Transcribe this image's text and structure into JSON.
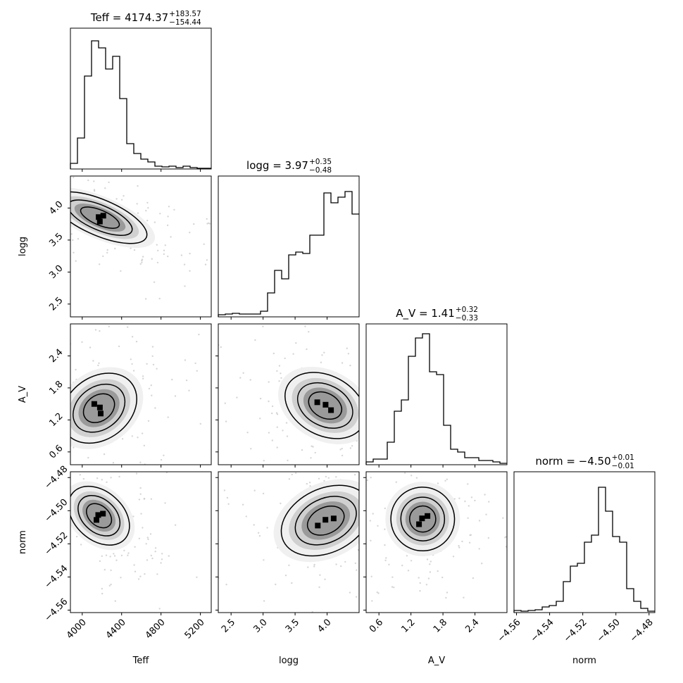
{
  "chart_data": {
    "type": "corner",
    "parameters": [
      "Teff",
      "logg",
      "A_V",
      "norm"
    ],
    "titles": [
      {
        "param": "Teff",
        "label": "Teff = 4174.37",
        "plus": "+183.57",
        "minus": "−154.44"
      },
      {
        "param": "logg",
        "label": "logg = 3.97",
        "plus": "+0.35",
        "minus": "−0.48"
      },
      {
        "param": "A_V",
        "label": "A_V = 1.41",
        "plus": "+0.32",
        "minus": "−0.33"
      },
      {
        "param": "norm",
        "label": "norm = −4.50",
        "plus": "+0.01",
        "minus": "−0.01"
      }
    ],
    "ranges": {
      "Teff": [
        3880,
        5310
      ],
      "logg": [
        2.3,
        4.5
      ],
      "A_V": [
        0.36,
        3.0
      ],
      "norm": [
        -4.5615,
        -4.4765
      ]
    },
    "ticks": {
      "Teff": [
        {
          "v": 4000,
          "t": "4000"
        },
        {
          "v": 4400,
          "t": "4400"
        },
        {
          "v": 4800,
          "t": "4800"
        },
        {
          "v": 5200,
          "t": "5200"
        }
      ],
      "logg": [
        {
          "v": 2.5,
          "t": "2.5"
        },
        {
          "v": 3.0,
          "t": "3.0"
        },
        {
          "v": 3.5,
          "t": "3.5"
        },
        {
          "v": 4.0,
          "t": "4.0"
        }
      ],
      "A_V": [
        {
          "v": 0.6,
          "t": "0.6"
        },
        {
          "v": 1.2,
          "t": "1.2"
        },
        {
          "v": 1.8,
          "t": "1.8"
        },
        {
          "v": 2.4,
          "t": "2.4"
        }
      ],
      "norm": [
        {
          "v": -4.56,
          "t": "−4.56"
        },
        {
          "v": -4.54,
          "t": "−4.54"
        },
        {
          "v": -4.52,
          "t": "−4.52"
        },
        {
          "v": -4.5,
          "t": "−4.50"
        },
        {
          "v": -4.48,
          "t": "−4.48"
        }
      ]
    },
    "histograms": {
      "Teff": [
        0.04,
        0.22,
        0.66,
        0.91,
        0.86,
        0.71,
        0.8,
        0.5,
        0.18,
        0.11,
        0.07,
        0.05,
        0.02,
        0.015,
        0.02,
        0.01,
        0.02,
        0.01,
        0.005,
        0.005
      ],
      "logg": [
        0.015,
        0.02,
        0.025,
        0.02,
        0.02,
        0.02,
        0.04,
        0.17,
        0.33,
        0.27,
        0.44,
        0.46,
        0.45,
        0.58,
        0.58,
        0.88,
        0.81,
        0.85,
        0.89,
        0.73
      ],
      "A_V": [
        0.02,
        0.04,
        0.04,
        0.16,
        0.38,
        0.46,
        0.77,
        0.9,
        0.93,
        0.66,
        0.64,
        0.28,
        0.11,
        0.09,
        0.05,
        0.05,
        0.03,
        0.03,
        0.02,
        0.01
      ],
      "norm": [
        0.015,
        0.01,
        0.015,
        0.02,
        0.04,
        0.05,
        0.08,
        0.22,
        0.33,
        0.35,
        0.5,
        0.55,
        0.89,
        0.72,
        0.54,
        0.5,
        0.17,
        0.08,
        0.03,
        0.01
      ]
    },
    "pair_cores": [
      {
        "x": "Teff",
        "y": "logg",
        "x0": 4180,
        "y0": 3.85,
        "angle": -67,
        "sx": 105,
        "sy": 0.45
      },
      {
        "x": "Teff",
        "y": "A_V",
        "x0": 4170,
        "y0": 1.42,
        "angle": 53,
        "sx": 180,
        "sy": 0.44
      },
      {
        "x": "logg",
        "y": "A_V",
        "x0": 3.97,
        "y0": 1.47,
        "angle": 28,
        "sx": 0.38,
        "sy": 0.32
      },
      {
        "x": "Teff",
        "y": "norm",
        "x0": 4170,
        "y0": -4.503,
        "angle": -48,
        "sx": 140,
        "sy": 0.012
      },
      {
        "x": "logg",
        "y": "norm",
        "x0": 3.98,
        "y0": -4.506,
        "angle": -26,
        "sx": 0.42,
        "sy": 0.011
      },
      {
        "x": "A_V",
        "y": "norm",
        "x0": 1.42,
        "y0": -4.505,
        "angle": -47,
        "sx": 0.34,
        "sy": 0.011
      }
    ]
  }
}
